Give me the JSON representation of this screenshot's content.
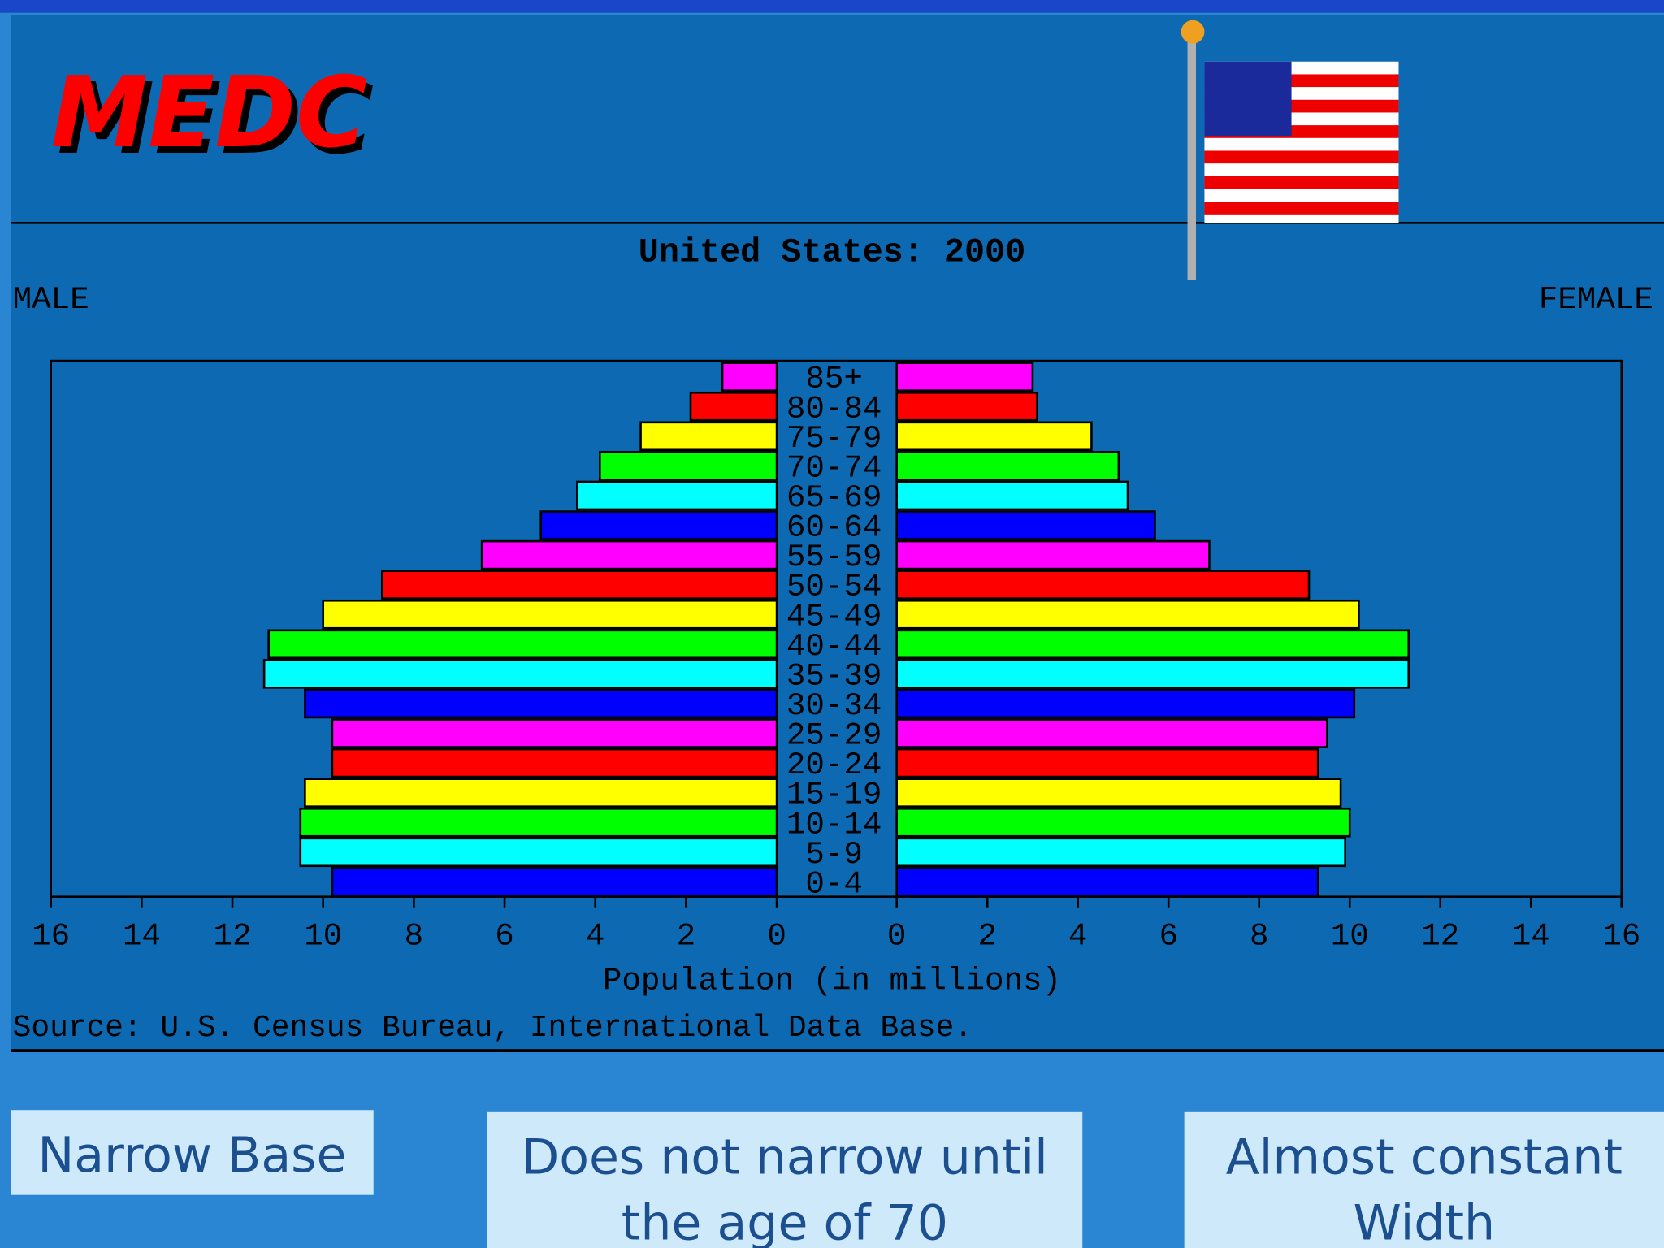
{
  "slide": {
    "heading": "MEDC",
    "notes": [
      {
        "lines": [
          "Narrow Base"
        ]
      },
      {
        "lines": [
          "Does not narrow until",
          "the age of 70"
        ]
      },
      {
        "lines": [
          "Almost constant",
          "Width"
        ]
      }
    ]
  },
  "chart_data": {
    "type": "population-pyramid",
    "title": "United States: 2000",
    "xlabel": "Population (in millions)",
    "source": "Source: U.S. Census Bureau, International Data Base.",
    "categories": [
      "0-4",
      "5-9",
      "10-14",
      "15-19",
      "20-24",
      "25-29",
      "30-34",
      "35-39",
      "40-44",
      "45-49",
      "50-54",
      "55-59",
      "60-64",
      "65-69",
      "70-74",
      "75-79",
      "80-84",
      "85+"
    ],
    "palette": [
      "#0000ff",
      "#00ffff",
      "#00ff00",
      "#ffff00",
      "#ff0000",
      "#ff00ff"
    ],
    "series": [
      {
        "name": "MALE",
        "values": [
          9.8,
          10.5,
          10.5,
          10.4,
          9.8,
          9.8,
          10.4,
          11.3,
          11.2,
          10.0,
          8.7,
          6.5,
          5.2,
          4.4,
          3.9,
          3.0,
          1.9,
          1.2
        ]
      },
      {
        "name": "FEMALE",
        "values": [
          9.3,
          9.9,
          10.0,
          9.8,
          9.3,
          9.5,
          10.1,
          11.3,
          11.3,
          10.2,
          9.1,
          6.9,
          5.7,
          5.1,
          4.9,
          4.3,
          3.1,
          3.0
        ]
      }
    ],
    "xlim": [
      0,
      16
    ],
    "xticks": [
      0,
      2,
      4,
      6,
      8,
      10,
      12,
      14,
      16
    ]
  }
}
